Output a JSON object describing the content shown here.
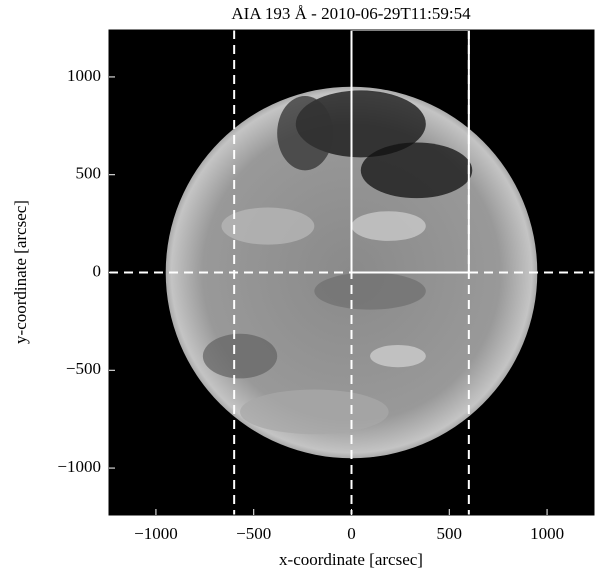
{
  "chart_data": {
    "type": "image",
    "title": "AIA 193 Å - 2010-06-29T11:59:54",
    "x_label": "x-coordinate [arcsec]",
    "y_label": "y-coordinate [arcsec]",
    "xlim": [
      -1240,
      1240
    ],
    "ylim": [
      -1240,
      1240
    ],
    "xticks": [
      {
        "value": -1000,
        "label": "−1000"
      },
      {
        "value": -500,
        "label": "−500"
      },
      0,
      500,
      1000
    ],
    "yticks": [
      {
        "value": -1000,
        "label": "−1000"
      },
      {
        "value": -500,
        "label": "−500"
      },
      0,
      500,
      1000
    ],
    "disk_radius": 950,
    "dashed_x": [
      -600,
      0,
      600
    ],
    "dashed_y": [
      0
    ],
    "box": {
      "x": [
        0,
        600
      ],
      "y": [
        0,
        1240
      ]
    },
    "color": "#ffffff"
  }
}
